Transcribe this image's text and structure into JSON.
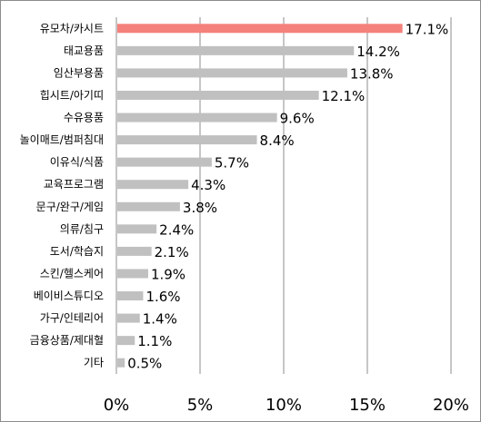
{
  "chart_data": {
    "type": "bar",
    "orientation": "horizontal",
    "categories": [
      "유모차/카시트",
      "태교용품",
      "임산부용품",
      "힙시트/아기띠",
      "수유용품",
      "놀이매트/범퍼침대",
      "이유식/식품",
      "교육프로그램",
      "문구/완구/게임",
      "의류/침구",
      "도서/학습지",
      "스킨/헬스케어",
      "베이비스튜디오",
      "가구/인테리어",
      "금융상품/제대혈",
      "기타"
    ],
    "values": [
      17.1,
      14.2,
      13.8,
      12.1,
      9.6,
      8.4,
      5.7,
      4.3,
      3.8,
      2.4,
      2.1,
      1.9,
      1.6,
      1.4,
      1.1,
      0.5
    ],
    "value_labels": [
      "17.1%",
      "14.2%",
      "13.8%",
      "12.1%",
      "9.6%",
      "8.4%",
      "5.7%",
      "4.3%",
      "3.8%",
      "2.4%",
      "2.1%",
      "1.9%",
      "1.6%",
      "1.4%",
      "1.1%",
      "0.5%"
    ],
    "xlim": [
      0,
      20
    ],
    "x_ticks": [
      0,
      5,
      10,
      15,
      20
    ],
    "x_tick_labels": [
      "0%",
      "5%",
      "10%",
      "15%",
      "20%"
    ],
    "grid": "vertical",
    "title": "",
    "xlabel": "",
    "ylabel": "",
    "colors": {
      "highlight": "#f4817c",
      "bar": "#c0c0c0",
      "grid": "#8c8c8c",
      "axis": "#8c8c8c"
    },
    "highlight_index": 0
  }
}
